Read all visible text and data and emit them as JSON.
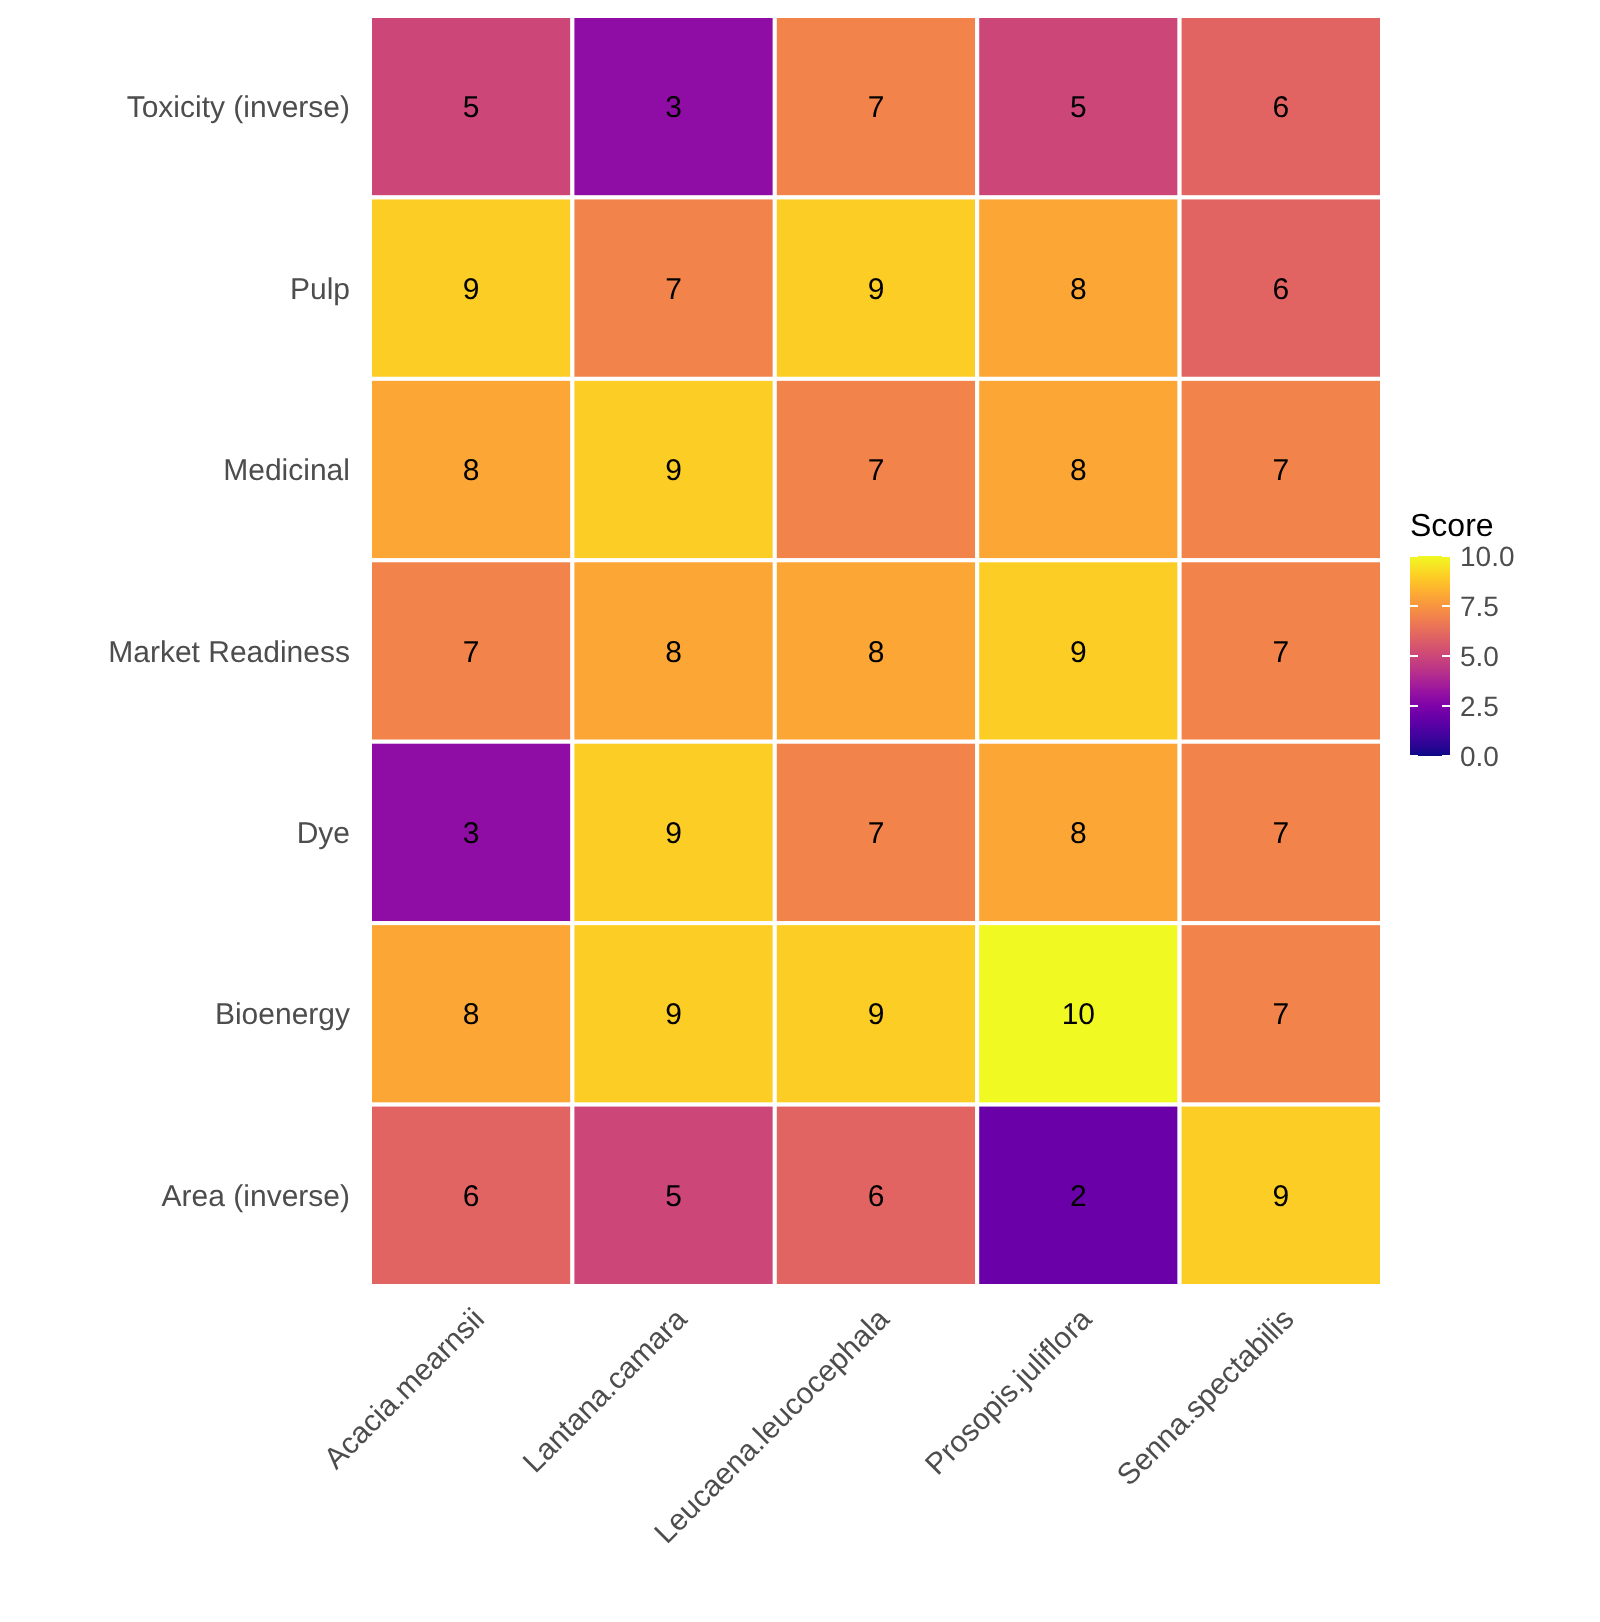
{
  "chart_data": {
    "type": "heatmap",
    "legend_title": "Score",
    "categories": [
      "Acacia.mearnsii",
      "Lantana.camara",
      "Leucaena.leucocephala",
      "Prosopis.juliflora",
      "Senna.spectabilis"
    ],
    "y_categories": [
      "Toxicity (inverse)",
      "Pulp",
      "Medicinal",
      "Market Readiness",
      "Dye",
      "Bioenergy",
      "Area (inverse)"
    ],
    "cells": [
      [
        5,
        3,
        7,
        5,
        6
      ],
      [
        9,
        7,
        9,
        8,
        6
      ],
      [
        8,
        9,
        7,
        8,
        7
      ],
      [
        7,
        8,
        8,
        9,
        7
      ],
      [
        3,
        9,
        7,
        8,
        7
      ],
      [
        8,
        9,
        9,
        10,
        7
      ],
      [
        6,
        5,
        6,
        2,
        9
      ]
    ],
    "data_labels": true,
    "clim": [
      0,
      10
    ],
    "cticks": [
      {
        "value": 0,
        "label": "0.0"
      },
      {
        "value": 2.5,
        "label": "2.5"
      },
      {
        "value": 5,
        "label": "5.0"
      },
      {
        "value": 7.5,
        "label": "7.5"
      },
      {
        "value": 10,
        "label": "10.0"
      }
    ]
  }
}
